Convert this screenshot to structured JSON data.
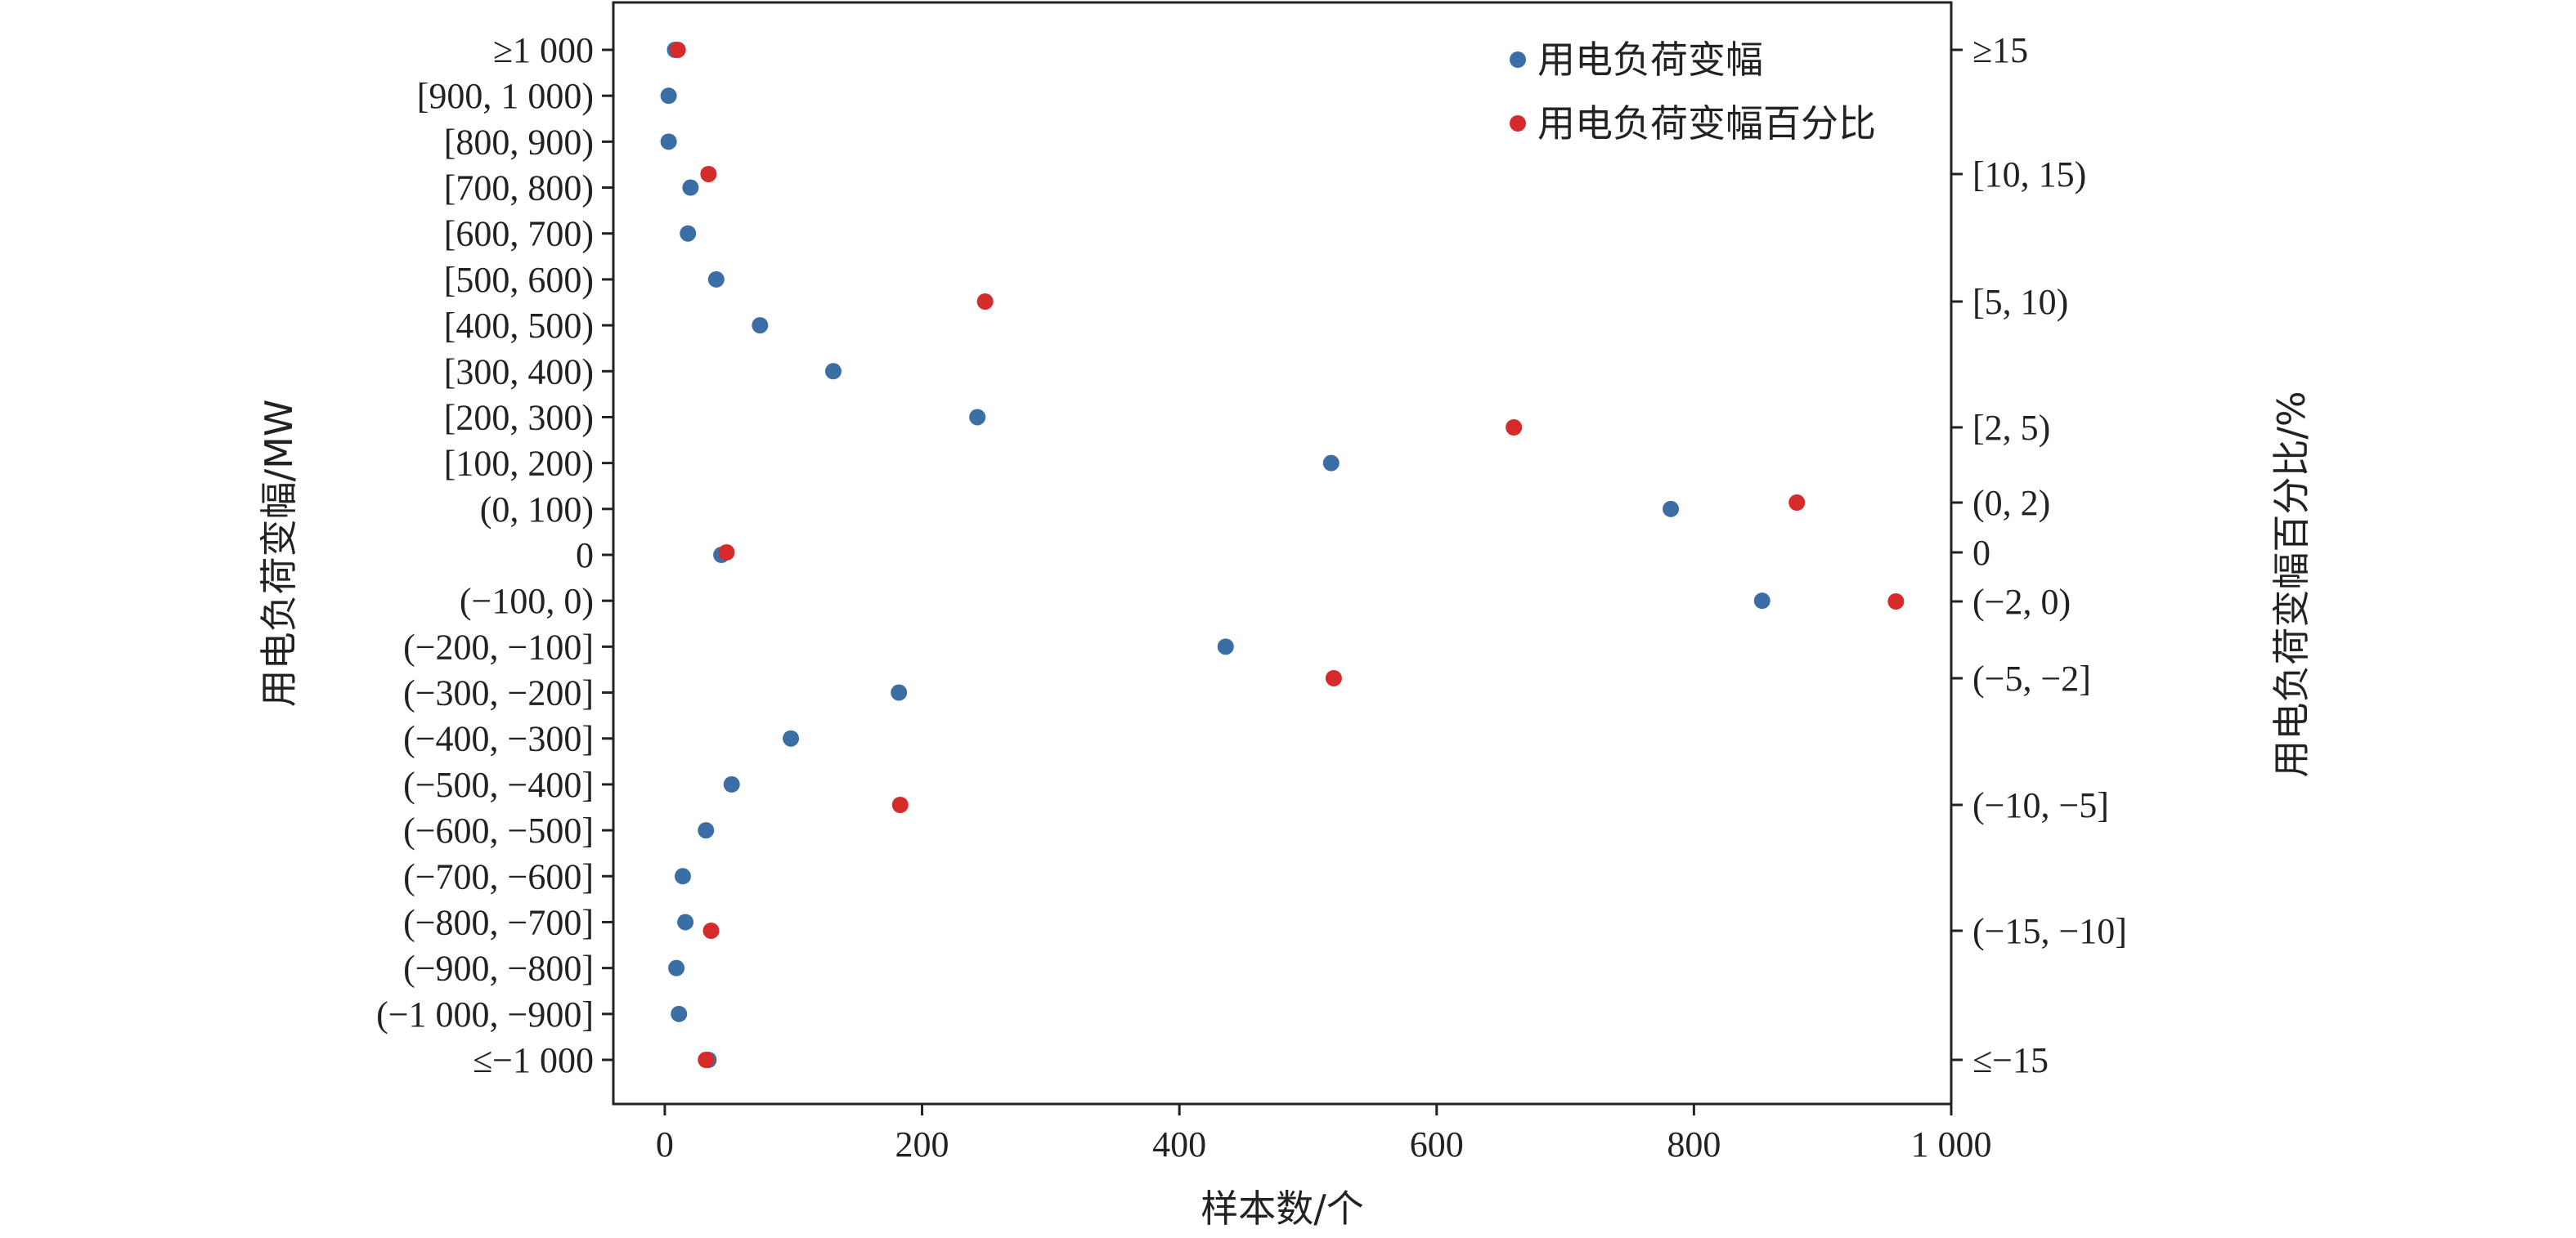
{
  "chart_data": {
    "type": "scatter",
    "xlabel": "样本数/个",
    "ylabel_left": "用电负荷变幅/MW",
    "ylabel_right": "用电负荷变幅百分比/%",
    "xlim": [
      -40,
      1000
    ],
    "x_ticks": [
      0,
      200,
      400,
      600,
      800,
      1000
    ],
    "x_tick_labels": [
      "0",
      "200",
      "400",
      "600",
      "800",
      "1 000"
    ],
    "left_categories": [
      "≥1 000",
      "[900, 1 000)",
      "[800, 900)",
      "[700, 800)",
      "[600, 700)",
      "[500, 600)",
      "[400, 500)",
      "[300, 400)",
      "[200, 300)",
      "[100, 200)",
      "(0, 100)",
      "0",
      "(−100, 0)",
      "(−200, −100]",
      "(−300, −200]",
      "(−400, −300]",
      "(−500, −400]",
      "(−600, −500]",
      "(−700, −600]",
      "(−800, −700]",
      "(−900, −800]",
      "(−1 000, −900]",
      "≤−1 000"
    ],
    "right_categories": [
      "≥15",
      "[10, 15)",
      "[5, 10)",
      "[2, 5)",
      "(0, 2)",
      "0",
      "(−2, 0)",
      "(−5, −2]",
      "(−10, −5]",
      "(−15, −10]",
      "≤−15"
    ],
    "series": [
      {
        "name": "用电负荷变幅",
        "color": "#3a6ea5",
        "axis": "left",
        "values": [
          8,
          3,
          3,
          20,
          18,
          40,
          74,
          131,
          243,
          518,
          782,
          44,
          853,
          436,
          182,
          98,
          52,
          32,
          14,
          16,
          9,
          11,
          34
        ]
      },
      {
        "name": "用电负荷变幅百分比",
        "color": "#d62b2b",
        "axis": "right",
        "values": [
          10,
          34,
          249,
          660,
          880,
          48,
          957,
          520,
          183,
          36,
          32
        ]
      }
    ],
    "legend_position": "top-right",
    "grid": false
  }
}
